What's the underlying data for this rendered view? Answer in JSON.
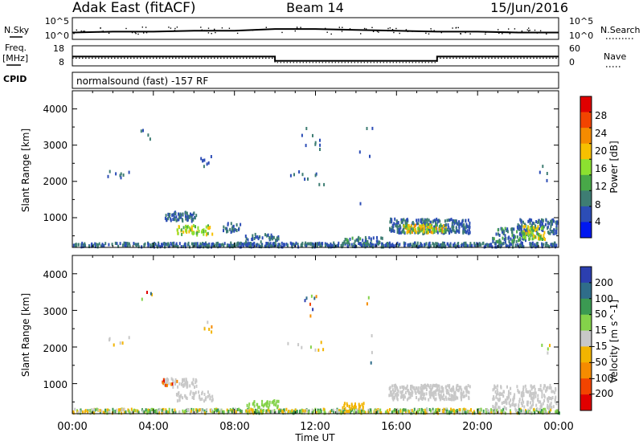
{
  "header": {
    "title": "Adak East (fitACF)",
    "beam": "Beam 14",
    "date": "15/Jun/2016"
  },
  "side_labels": {
    "nsky": "N.Sky",
    "nsearch": "N.Search",
    "freq_line1": "Freq.",
    "freq_line2": "[MHz]",
    "nave": "Nave",
    "cpid": "CPID"
  },
  "cpid_text": "normalsound (fast) -157 RF",
  "chart_data": [
    {
      "type": "line",
      "name": "noise-panel",
      "left_ticks": [
        "10^5",
        "10^0"
      ],
      "right_ticks": [
        "10^5",
        "10^0"
      ],
      "series": [
        {
          "x": [
            0,
            2,
            4,
            6,
            8,
            10,
            12,
            14,
            16,
            18,
            20,
            22,
            24
          ],
          "values": [
            0.25,
            0.3,
            0.3,
            0.35,
            0.35,
            0.45,
            0.45,
            0.4,
            0.35,
            0.3,
            0.3,
            0.25,
            0.25
          ]
        }
      ]
    },
    {
      "type": "line",
      "name": "frequency-panel",
      "left_ticks": [
        "18",
        "8"
      ],
      "right_ticks": [
        "60",
        "0"
      ],
      "series": [
        {
          "x": [
            0,
            10,
            10,
            18,
            18,
            24
          ],
          "values": [
            12.5,
            12.5,
            9.5,
            9.5,
            12.5,
            12.5
          ]
        },
        {
          "x": [
            0,
            10,
            10,
            18,
            18,
            24
          ],
          "values": [
            23,
            23,
            10,
            10,
            23,
            23
          ]
        }
      ]
    },
    {
      "type": "heatmap",
      "name": "power",
      "xlabel": "",
      "ylabel": "Slant Range [km]",
      "xlim": [
        0,
        24
      ],
      "ylim": [
        180,
        4500
      ],
      "yticks": [
        "1000",
        "2000",
        "3000",
        "4000"
      ],
      "colorbar": {
        "label": "Power [dB]",
        "ticks": [
          "4",
          "8",
          "12",
          "16",
          "20",
          "24",
          "28"
        ],
        "colors": [
          "#0018f0",
          "#2c4db6",
          "#3e7d73",
          "#48a848",
          "#8ce030",
          "#f7c000",
          "#f58b00",
          "#f24400",
          "#e00000"
        ]
      },
      "blobs": [
        {
          "t0": 0.0,
          "t1": 24.0,
          "r0": 190,
          "r1": 300,
          "n": 650,
          "lv": [
            1,
            2
          ]
        },
        {
          "t0": 4.5,
          "t1": 6.1,
          "r0": 900,
          "r1": 1150,
          "n": 75,
          "lv": [
            1,
            2
          ]
        },
        {
          "t0": 5.1,
          "t1": 6.9,
          "r0": 520,
          "r1": 780,
          "n": 55,
          "lv": [
            3,
            5
          ]
        },
        {
          "t0": 7.4,
          "t1": 8.5,
          "r0": 600,
          "r1": 850,
          "n": 26,
          "lv": [
            1,
            2
          ]
        },
        {
          "t0": 8.5,
          "t1": 10.2,
          "r0": 330,
          "r1": 540,
          "n": 36,
          "lv": [
            1,
            2
          ]
        },
        {
          "t0": 13.3,
          "t1": 14.6,
          "r0": 300,
          "r1": 460,
          "n": 26,
          "lv": [
            1,
            3
          ]
        },
        {
          "t0": 14.5,
          "t1": 15.3,
          "r0": 300,
          "r1": 450,
          "n": 12,
          "lv": [
            1,
            2
          ]
        },
        {
          "t0": 15.6,
          "t1": 19.6,
          "r0": 560,
          "r1": 960,
          "n": 260,
          "lv": [
            1,
            2
          ]
        },
        {
          "t0": 16.3,
          "t1": 18.4,
          "r0": 580,
          "r1": 800,
          "n": 110,
          "lv": [
            3,
            6
          ]
        },
        {
          "t0": 20.7,
          "t1": 22.4,
          "r0": 300,
          "r1": 700,
          "n": 80,
          "lv": [
            1,
            3
          ]
        },
        {
          "t0": 21.9,
          "t1": 23.9,
          "r0": 500,
          "r1": 950,
          "n": 130,
          "lv": [
            1,
            2
          ]
        },
        {
          "t0": 22.2,
          "t1": 23.3,
          "r0": 400,
          "r1": 760,
          "n": 70,
          "lv": [
            3,
            5
          ]
        },
        {
          "t0": 1.7,
          "t1": 2.8,
          "r0": 2050,
          "r1": 2300,
          "n": 8,
          "lv": [
            1,
            2
          ]
        },
        {
          "t0": 6.2,
          "t1": 6.9,
          "r0": 2400,
          "r1": 2700,
          "n": 8,
          "lv": [
            1,
            2
          ]
        },
        {
          "t0": 10.6,
          "t1": 12.4,
          "r0": 1900,
          "r1": 2300,
          "n": 10,
          "lv": [
            1,
            2
          ]
        },
        {
          "t0": 11.3,
          "t1": 12.2,
          "r0": 2800,
          "r1": 3600,
          "n": 9,
          "lv": [
            1,
            2
          ]
        },
        {
          "t0": 3.3,
          "t1": 4.2,
          "r0": 3000,
          "r1": 3500,
          "n": 4,
          "lv": [
            1,
            2
          ]
        },
        {
          "t0": 14.1,
          "t1": 14.8,
          "r0": 1000,
          "r1": 3500,
          "n": 5,
          "lv": [
            1,
            2
          ]
        },
        {
          "t0": 23.0,
          "t1": 23.6,
          "r0": 1800,
          "r1": 2500,
          "n": 4,
          "lv": [
            1,
            2
          ]
        }
      ]
    },
    {
      "type": "heatmap",
      "name": "velocity",
      "xlabel": "Time UT",
      "ylabel": "Slant Range [km]",
      "xlim": [
        0,
        24
      ],
      "ylim": [
        180,
        4500
      ],
      "xticks": [
        "00:00",
        "04:00",
        "08:00",
        "12:00",
        "16:00",
        "20:00",
        "00:00"
      ],
      "yticks": [
        "1000",
        "2000",
        "3000",
        "4000"
      ],
      "colorbar": {
        "label": "Velocity [m s^-1]",
        "ticks": [
          "200",
          "100",
          "50",
          "15",
          "-15",
          "-50",
          "-100",
          "-200"
        ],
        "colors": [
          "#2c3fb0",
          "#2f6d8a",
          "#3b9a52",
          "#84d24a",
          "#c8c8c8",
          "#f2b400",
          "#f58b00",
          "#f24400",
          "#e00000"
        ]
      },
      "blobs": [
        {
          "t0": 0.0,
          "t1": 24.0,
          "r0": 190,
          "r1": 300,
          "n": 650,
          "lv": [
            2,
            5
          ]
        },
        {
          "t0": 4.5,
          "t1": 6.1,
          "r0": 900,
          "r1": 1150,
          "n": 60,
          "lv": [
            4,
            4
          ]
        },
        {
          "t0": 5.1,
          "t1": 6.9,
          "r0": 520,
          "r1": 780,
          "n": 45,
          "lv": [
            4,
            4
          ]
        },
        {
          "t0": 8.5,
          "t1": 10.2,
          "r0": 330,
          "r1": 540,
          "n": 34,
          "lv": [
            3,
            3
          ]
        },
        {
          "t0": 13.3,
          "t1": 14.6,
          "r0": 300,
          "r1": 460,
          "n": 22,
          "lv": [
            5,
            5
          ]
        },
        {
          "t0": 15.6,
          "t1": 19.6,
          "r0": 560,
          "r1": 960,
          "n": 280,
          "lv": [
            4,
            4
          ]
        },
        {
          "t0": 20.7,
          "t1": 23.9,
          "r0": 300,
          "r1": 950,
          "n": 200,
          "lv": [
            4,
            4
          ]
        },
        {
          "t0": 4.3,
          "t1": 5.2,
          "r0": 950,
          "r1": 1150,
          "n": 10,
          "lv": [
            6,
            8
          ]
        },
        {
          "t0": 1.7,
          "t1": 2.8,
          "r0": 2050,
          "r1": 2300,
          "n": 6,
          "lv": [
            4,
            5
          ]
        },
        {
          "t0": 6.2,
          "t1": 6.9,
          "r0": 2400,
          "r1": 2700,
          "n": 6,
          "lv": [
            4,
            6
          ]
        },
        {
          "t0": 10.6,
          "t1": 12.4,
          "r0": 1900,
          "r1": 2300,
          "n": 8,
          "lv": [
            3,
            5
          ]
        },
        {
          "t0": 11.3,
          "t1": 12.2,
          "r0": 2800,
          "r1": 3600,
          "n": 8,
          "lv": [
            0,
            8
          ]
        },
        {
          "t0": 3.3,
          "t1": 4.2,
          "r0": 3000,
          "r1": 3500,
          "n": 4,
          "lv": [
            0,
            8
          ]
        },
        {
          "t0": 14.1,
          "t1": 14.8,
          "r0": 1000,
          "r1": 3500,
          "n": 5,
          "lv": [
            0,
            6
          ]
        },
        {
          "t0": 23.0,
          "t1": 23.6,
          "r0": 1800,
          "r1": 2500,
          "n": 4,
          "lv": [
            0,
            5
          ]
        }
      ]
    }
  ]
}
